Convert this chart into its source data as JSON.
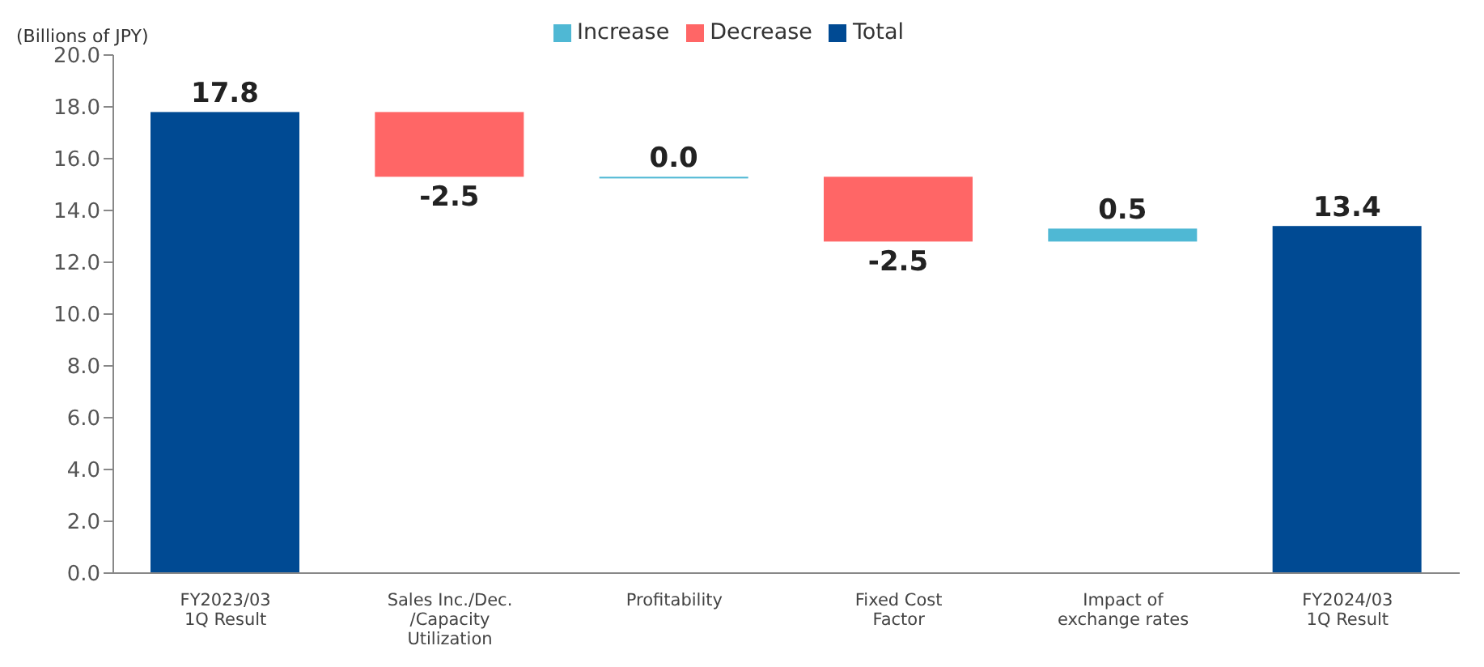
{
  "chart_data": {
    "type": "bar",
    "ylabel": "(Billions of JPY)",
    "categories": [
      "FY2023/03\n1Q Result",
      "Sales Inc./Dec.\n/Capacity\nUtilization",
      "Profitability",
      "Fixed Cost\nFactor",
      "Impact of\nexchange rates",
      "FY2024/03\n1Q Result"
    ],
    "series": [
      {
        "name": "Increase",
        "color": "#4fb8d4",
        "values": [
          null,
          null,
          0.0,
          null,
          0.5,
          null
        ],
        "value_labels": [
          null,
          null,
          "0.0",
          null,
          "0.5",
          null
        ],
        "base": [
          null,
          null,
          15.3,
          null,
          12.8,
          null
        ]
      },
      {
        "name": "Decrease",
        "color": "#ff6666",
        "values": [
          null,
          -2.5,
          null,
          -2.5,
          null,
          null
        ],
        "value_labels": [
          null,
          "-2.5",
          null,
          "-2.5",
          null,
          null
        ],
        "base": [
          null,
          17.8,
          null,
          15.3,
          null,
          null
        ]
      },
      {
        "name": "Total",
        "color": "#004a93",
        "values": [
          17.8,
          null,
          null,
          null,
          null,
          13.4
        ],
        "value_labels": [
          "17.8",
          null,
          null,
          null,
          null,
          "13.4"
        ],
        "base": [
          0,
          null,
          null,
          null,
          null,
          0
        ]
      }
    ],
    "ylim": [
      0,
      20
    ],
    "yticks": [
      {
        "value": 0,
        "label": "0.0"
      },
      {
        "value": 2,
        "label": "2.0"
      },
      {
        "value": 4,
        "label": "4.0"
      },
      {
        "value": 6,
        "label": "6.0"
      },
      {
        "value": 8,
        "label": "8.0"
      },
      {
        "value": 10,
        "label": "10.0"
      },
      {
        "value": 12,
        "label": "12.0"
      },
      {
        "value": 14,
        "label": "14.0"
      },
      {
        "value": 16,
        "label": "16.0"
      },
      {
        "value": 18,
        "label": "18.0"
      },
      {
        "value": 20,
        "label": "20.0"
      }
    ],
    "grid": false,
    "legend": "top"
  }
}
